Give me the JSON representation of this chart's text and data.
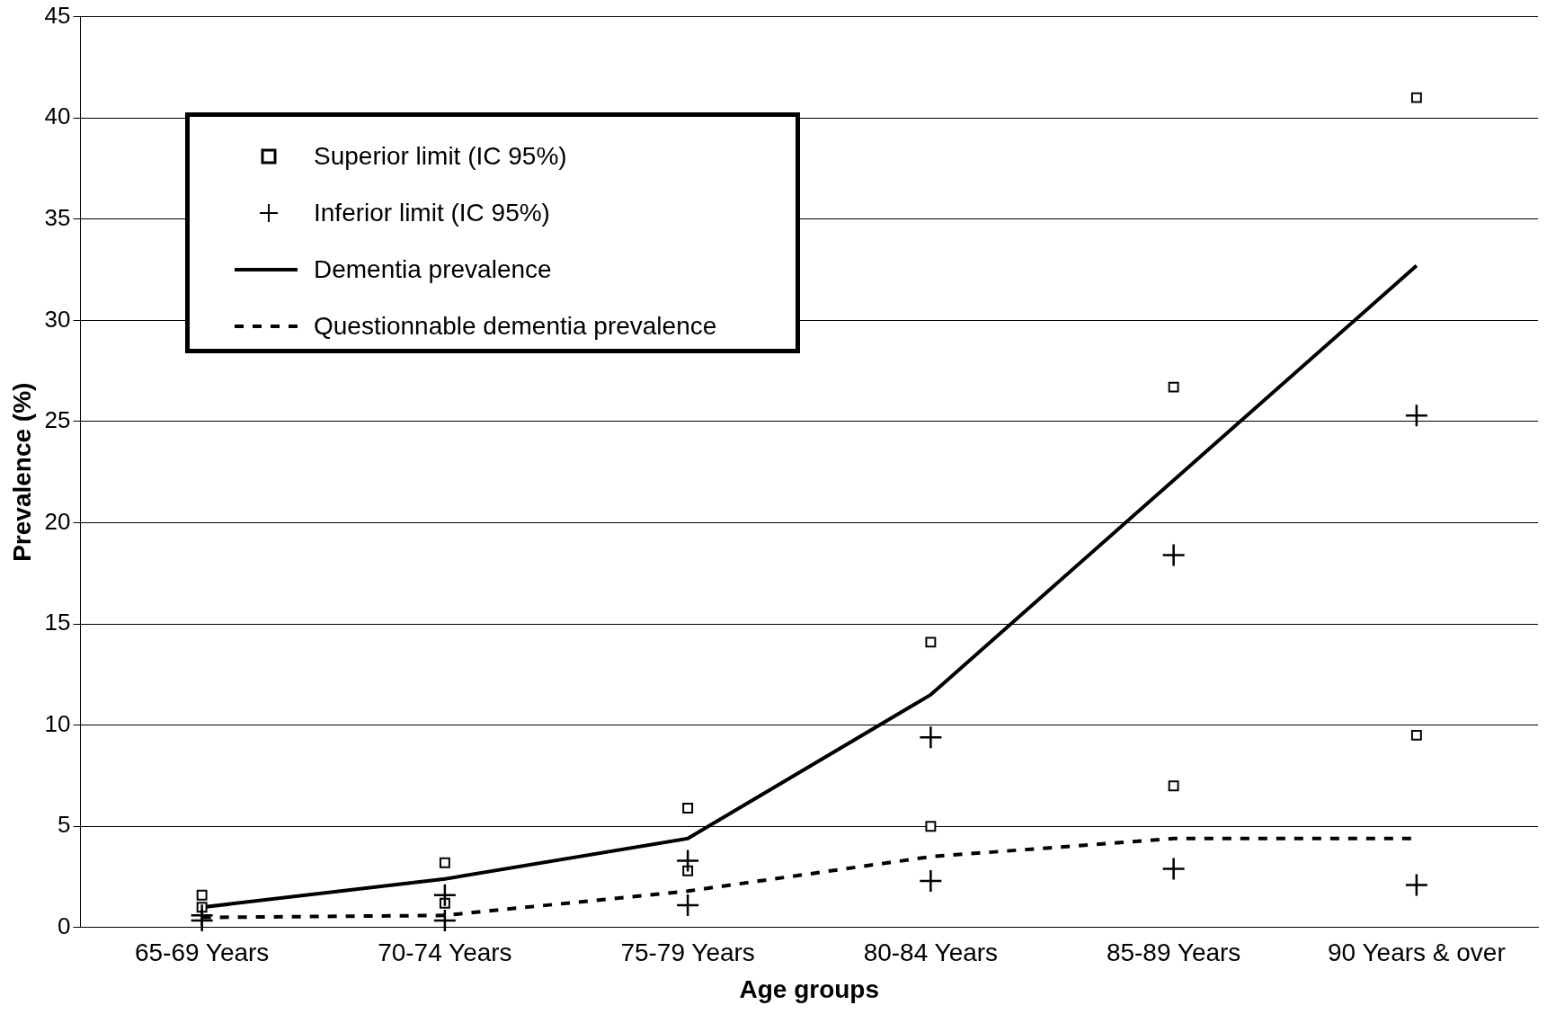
{
  "chart_data": {
    "type": "line",
    "xlabel": "Age groups",
    "ylabel": "Prevalence (%)",
    "categories": [
      "65-69 Years",
      "70-74 Years",
      "75-79 Years",
      "80-84 Years",
      "85-89 Years",
      "90 Years & over"
    ],
    "ylim": [
      0,
      45
    ],
    "yticks": [
      0,
      5,
      10,
      15,
      20,
      25,
      30,
      35,
      40,
      45
    ],
    "grid": "y",
    "legend": "top left",
    "series": [
      {
        "name": "Superior limit (IC 95%)",
        "type": "scatter",
        "marker": "square",
        "color": "#000000",
        "x": [
          "65-69 Years",
          "65-69 Years",
          "70-74 Years",
          "70-74 Years",
          "75-79 Years",
          "75-79 Years",
          "80-84 Years",
          "80-84 Years",
          "85-89 Years",
          "85-89 Years",
          "90 Years & over",
          "90 Years & over"
        ],
        "values": [
          1.6,
          1.0,
          3.2,
          1.2,
          5.9,
          2.8,
          14.1,
          5.0,
          26.7,
          7.0,
          41.0,
          9.5
        ]
      },
      {
        "name": "Inferior limit (IC 95%)",
        "type": "scatter",
        "marker": "cross",
        "color": "#000000",
        "x": [
          "65-69 Years",
          "65-69 Years",
          "70-74 Years",
          "70-74 Years",
          "75-79 Years",
          "75-79 Years",
          "80-84 Years",
          "80-84 Years",
          "85-89 Years",
          "85-89 Years",
          "90 Years & over",
          "90 Years & over"
        ],
        "values": [
          0.6,
          0.35,
          1.6,
          0.35,
          3.3,
          1.1,
          9.4,
          2.3,
          18.4,
          2.9,
          25.3,
          2.1
        ]
      },
      {
        "name": "Dementia prevalence",
        "marker": "none",
        "line_style": "solid",
        "color": "#000000",
        "values": [
          1.0,
          2.4,
          4.4,
          11.5,
          22.1,
          32.7
        ]
      },
      {
        "name": "Questionnable dementia prevalence",
        "marker": "none",
        "line_style": "dashed",
        "color": "#000000",
        "values": [
          0.5,
          0.6,
          1.8,
          3.5,
          4.4,
          4.4
        ]
      }
    ]
  }
}
